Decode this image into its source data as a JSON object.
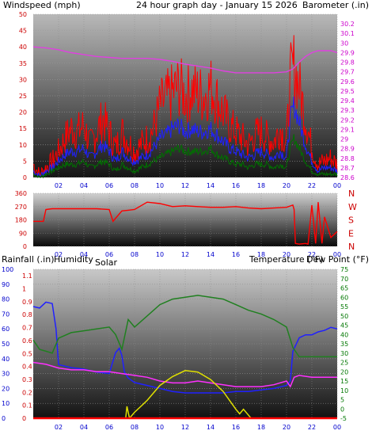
{
  "header": {
    "left_title": "Windspeed (mph)",
    "center_title": "24 hour graph day - January 15 2026",
    "right_title": "Barometer (.in)"
  },
  "colors": {
    "wind_gust": "#ff0000",
    "wind_avg": "#2020ff",
    "wind_low": "#007000",
    "barometer": "#e040e0",
    "direction": "#ff0000",
    "humidity": "#2020ff",
    "temperature": "#208020",
    "dewpoint": "#ff30ff",
    "solar": "#e0e000",
    "rain": "#ff0000",
    "axis_red": "#cc0000",
    "axis_blue": "#0000cc",
    "axis_magenta": "#cc00cc",
    "axis_green": "#007700",
    "axis_olive": "#999900"
  },
  "chart_data": [
    {
      "type": "line",
      "id": "wind",
      "x_ticks": [
        "02",
        "04",
        "06",
        "08",
        "10",
        "12",
        "14",
        "16",
        "18",
        "20",
        "22",
        "00"
      ],
      "xlim": [
        0,
        24
      ],
      "ylim": [
        0,
        50
      ],
      "y_ticks": [
        "0",
        "5",
        "10",
        "15",
        "20",
        "25",
        "30",
        "35",
        "40",
        "45",
        "50"
      ],
      "ylabel": "Windspeed (mph)",
      "y2lim": [
        28.6,
        30.3
      ],
      "y2_ticks": [
        "28.6",
        "28.7",
        "28.8",
        "28.9",
        "29",
        "29.1",
        "29.2",
        "29.3",
        "29.4",
        "29.5",
        "29.6",
        "29.7",
        "29.8",
        "29.9",
        "30",
        "30.1",
        "30.2"
      ],
      "y2label": "Barometer (.in)",
      "series": [
        {
          "role": "gust",
          "x": [
            0,
            0.5,
            1,
            1.5,
            2,
            2.5,
            3,
            3.5,
            4,
            4.5,
            5,
            5.5,
            6,
            6.5,
            7,
            7.5,
            8,
            8.5,
            9,
            9.5,
            10,
            10.5,
            11,
            11.5,
            12,
            12.5,
            13,
            13.5,
            14,
            14.5,
            15,
            15.5,
            16,
            16.5,
            17,
            17.5,
            18,
            18.5,
            19,
            19.5,
            20,
            20.3,
            20.6,
            21,
            21.5,
            22,
            22.5,
            23,
            23.5,
            24
          ],
          "y": [
            4,
            1,
            3,
            5,
            8,
            12,
            15,
            14,
            16,
            10,
            14,
            18,
            14,
            9,
            14,
            11,
            8,
            10,
            12,
            15,
            22,
            24,
            26,
            28,
            25,
            27,
            26,
            25,
            28,
            24,
            20,
            16,
            14,
            12,
            10,
            13,
            14,
            12,
            11,
            15,
            11,
            30,
            34,
            28,
            18,
            9,
            4,
            5,
            6,
            4
          ]
        },
        {
          "role": "average",
          "x": [
            0,
            0.5,
            1,
            1.5,
            2,
            2.5,
            3,
            3.5,
            4,
            4.5,
            5,
            5.5,
            6,
            6.5,
            7,
            7.5,
            8,
            8.5,
            9,
            9.5,
            10,
            10.5,
            11,
            11.5,
            12,
            12.5,
            13,
            13.5,
            14,
            14.5,
            15,
            15.5,
            16,
            16.5,
            17,
            17.5,
            18,
            18.5,
            19,
            19.5,
            20,
            20.3,
            20.6,
            21,
            21.5,
            22,
            22.5,
            23,
            23.5,
            24
          ],
          "y": [
            2,
            0.5,
            2,
            3,
            5,
            7,
            8,
            8,
            9,
            6,
            8,
            10,
            8,
            5,
            8,
            6,
            5,
            6,
            7,
            9,
            12,
            13,
            15,
            16,
            14,
            15,
            14,
            14,
            15,
            13,
            11,
            9,
            8,
            7,
            6,
            7,
            8,
            7,
            6,
            8,
            6,
            18,
            22,
            17,
            10,
            5,
            2,
            3,
            3,
            2
          ]
        },
        {
          "role": "low",
          "x": [
            0,
            0.5,
            1,
            1.5,
            2,
            2.5,
            3,
            3.5,
            4,
            4.5,
            5,
            5.5,
            6,
            6.5,
            7,
            7.5,
            8,
            8.5,
            9,
            9.5,
            10,
            10.5,
            11,
            11.5,
            12,
            12.5,
            13,
            13.5,
            14,
            14.5,
            15,
            15.5,
            16,
            16.5,
            17,
            17.5,
            18,
            18.5,
            19,
            19.5,
            20,
            20.3,
            20.6,
            21,
            21.5,
            22,
            22.5,
            23,
            23.5,
            24
          ],
          "y": [
            1,
            0,
            1,
            2,
            3,
            4,
            4,
            4,
            5,
            3,
            4,
            5,
            4,
            2,
            4,
            3,
            2,
            3,
            4,
            5,
            6,
            7,
            8,
            9,
            8,
            8,
            8,
            8,
            9,
            7,
            6,
            5,
            4,
            4,
            3,
            4,
            4,
            4,
            3,
            4,
            3,
            9,
            12,
            9,
            5,
            2,
            1,
            1,
            1,
            1
          ]
        },
        {
          "role": "barometer",
          "x": [
            0,
            1,
            2,
            3,
            4,
            5,
            6,
            7,
            8,
            9,
            10,
            11,
            12,
            13,
            14,
            15,
            16,
            17,
            18,
            19,
            20,
            20.5,
            21,
            21.5,
            22,
            22.5,
            23,
            23.5,
            24
          ],
          "y": [
            29.96,
            29.95,
            29.93,
            29.9,
            29.88,
            29.86,
            29.85,
            29.84,
            29.84,
            29.84,
            29.83,
            29.81,
            29.78,
            29.76,
            29.74,
            29.71,
            29.69,
            29.69,
            29.69,
            29.69,
            29.7,
            29.73,
            29.8,
            29.86,
            29.9,
            29.92,
            29.92,
            29.92,
            29.9
          ]
        }
      ]
    },
    {
      "type": "line",
      "id": "direction",
      "x_ticks": [
        "02",
        "04",
        "06",
        "08",
        "10",
        "12",
        "14",
        "16",
        "18",
        "20",
        "22",
        "00"
      ],
      "xlim": [
        0,
        24
      ],
      "ylim": [
        0,
        360
      ],
      "y_ticks": [
        "0",
        "90",
        "180",
        "270",
        "360"
      ],
      "y2_ticks": [
        "N",
        "E",
        "S",
        "W",
        "N"
      ],
      "series": [
        {
          "role": "direction",
          "x": [
            0,
            0.8,
            1,
            1.5,
            2,
            3,
            4,
            5,
            6,
            6.3,
            6.5,
            7,
            7.5,
            8,
            9,
            10,
            11,
            12,
            13,
            14,
            15,
            16,
            17,
            18,
            19,
            20,
            20.5,
            20.6,
            20.7,
            21,
            21.5,
            21.7,
            22,
            22.3,
            22.5,
            22.8,
            23,
            23.5,
            24
          ],
          "y": [
            170,
            170,
            250,
            255,
            255,
            255,
            255,
            255,
            250,
            170,
            190,
            240,
            245,
            250,
            300,
            290,
            270,
            275,
            270,
            265,
            265,
            270,
            260,
            255,
            260,
            265,
            280,
            250,
            20,
            15,
            20,
            15,
            280,
            20,
            300,
            20,
            200,
            60,
            100
          ]
        }
      ]
    },
    {
      "type": "line",
      "id": "weather",
      "x_ticks": [
        "02",
        "04",
        "06",
        "08",
        "10",
        "12",
        "14",
        "16",
        "18",
        "20",
        "22",
        "00"
      ],
      "xlim": [
        0,
        24
      ],
      "left_labels": {
        "rainfall": "Rainfall (.in)",
        "humidity": "Humidity",
        "solar": "Solar"
      },
      "right_labels": {
        "temperature": "Temperature (°F)",
        "dewpoint": "Dew Point (°F)"
      },
      "rain_ticks": [
        "0",
        "0.1",
        "0.2",
        "0.3",
        "0.4",
        "0.5",
        "0.6",
        "0.7",
        "0.8",
        "0.9",
        "1",
        "1.1"
      ],
      "humidity_ticks": [
        "0",
        "10",
        "20",
        "30",
        "40",
        "50",
        "60",
        "70",
        "80",
        "90",
        "100"
      ],
      "ylim": [
        0,
        100
      ],
      "y2lim": [
        -5,
        75
      ],
      "y2_ticks": [
        "-5",
        "0",
        "5",
        "10",
        "15",
        "20",
        "25",
        "30",
        "35",
        "40",
        "45",
        "50",
        "55",
        "60",
        "65",
        "70",
        "75"
      ],
      "series": [
        {
          "role": "humidity",
          "x": [
            0,
            0.5,
            1,
            1.5,
            1.8,
            2,
            3,
            4,
            5,
            6,
            6.5,
            6.8,
            7,
            7.2,
            7.5,
            8,
            9,
            10,
            11,
            12,
            13,
            14,
            15,
            16,
            17,
            18,
            19,
            20,
            20.3,
            20.5,
            21,
            21.5,
            22,
            22.5,
            23,
            23.5,
            24
          ],
          "y": [
            75,
            74,
            78,
            77,
            60,
            36,
            34,
            33,
            31,
            30,
            44,
            47,
            42,
            31,
            27,
            24,
            22,
            20,
            18,
            17,
            17,
            17,
            17,
            18,
            18,
            19,
            20,
            22,
            25,
            45,
            54,
            56,
            56,
            58,
            59,
            61,
            60
          ]
        },
        {
          "role": "temperature",
          "x": [
            0,
            0.5,
            1,
            1.5,
            2,
            3,
            4,
            5,
            6,
            6.5,
            7,
            7.5,
            8,
            9,
            10,
            11,
            12,
            13,
            14,
            15,
            16,
            17,
            18,
            19,
            20,
            20.5,
            21,
            22,
            23,
            24
          ],
          "y": [
            37,
            32,
            31,
            30,
            38,
            41,
            42,
            43,
            44,
            40,
            32,
            48,
            44,
            50,
            56,
            59,
            60,
            61,
            60,
            59,
            56,
            53,
            51,
            48,
            44,
            33,
            28,
            28,
            28,
            28
          ]
        },
        {
          "role": "dewpoint",
          "x": [
            0,
            1,
            2,
            3,
            4,
            5,
            6,
            7,
            8,
            9,
            10,
            11,
            12,
            13,
            14,
            15,
            16,
            17,
            18,
            19,
            20,
            20.3,
            20.6,
            21,
            22,
            23,
            24
          ],
          "y": [
            25,
            24,
            22,
            21,
            21,
            20,
            20,
            19,
            18,
            17,
            15,
            14,
            14,
            15,
            14,
            13,
            12,
            12,
            12,
            13,
            15,
            12,
            17,
            18,
            17,
            17,
            17
          ]
        },
        {
          "role": "solar",
          "x": [
            0,
            7.3,
            7.4,
            7.6,
            8,
            8.5,
            9,
            10,
            11,
            12,
            13,
            14,
            15,
            15.5,
            16,
            16.3,
            16.6,
            17,
            17.2,
            24
          ],
          "y": [
            0,
            0,
            8,
            0,
            4,
            8,
            12,
            22,
            28,
            32,
            31,
            26,
            18,
            12,
            6,
            3,
            6,
            2,
            0,
            0
          ]
        },
        {
          "role": "rain",
          "x": [
            0,
            24
          ],
          "y": [
            0,
            0
          ]
        }
      ]
    }
  ]
}
